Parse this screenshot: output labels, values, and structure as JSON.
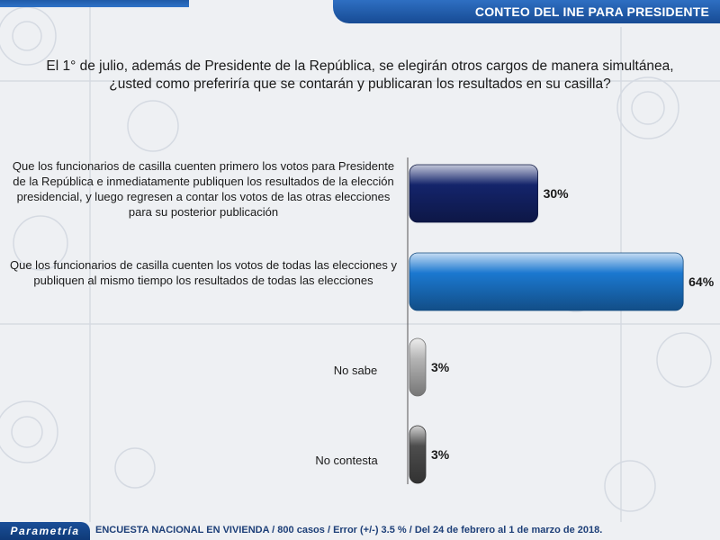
{
  "header": {
    "title": "CONTEO DEL INE PARA PRESIDENTE"
  },
  "question": {
    "line1": "El 1° de julio, además de Presidente de la República, se elegirán otros cargos de manera simultánea,",
    "line2": "¿usted como preferiría que se contarán y publicaran los resultados en su casilla?"
  },
  "chart_data": {
    "type": "bar",
    "orientation": "horizontal",
    "categories": [
      "Que los funcionarios de casilla cuenten primero los votos para Presidente de la República e inmediatamente publiquen los resultados de la elección presidencial, y luego regresen a contar los votos de las otras elecciones para su posterior publicación",
      "Que los funcionarios de casilla cuenten los votos de todas las elecciones y publiquen al mismo tiempo los resultados de todas las elecciones",
      "No sabe",
      "No contesta"
    ],
    "values": [
      30,
      64,
      3,
      3
    ],
    "value_labels": [
      "30%",
      "64%",
      "3%",
      "3%"
    ],
    "colors": [
      "#14246b",
      "#1b78d0",
      "#b5b5b5",
      "#4d4d4d"
    ],
    "xlim": [
      0,
      100
    ],
    "grid": false,
    "legend": "none"
  },
  "footer": {
    "brand": "Parametría",
    "note": "ENCUESTA NACIONAL EN VIVIENDA / 800 casos / Error (+/-) 3.5 % / Del 24 de febrero  al 1 de marzo de 2018."
  }
}
